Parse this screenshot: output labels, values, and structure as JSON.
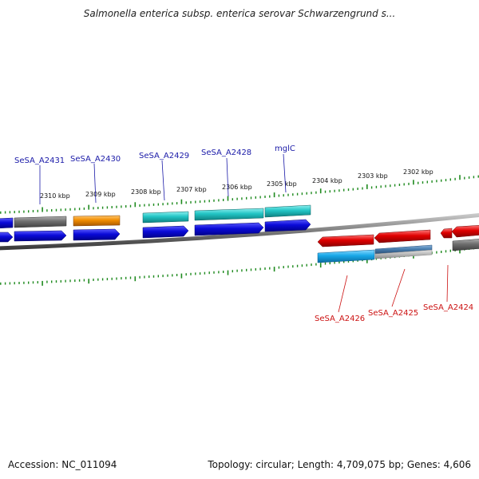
{
  "title": "Salmonella enterica subsp. enterica serovar Schwarzengrund s...",
  "accession": "Accession: NC_011094",
  "summary": "Topology: circular; Length: 4,709,075 bp; Genes: 4,606",
  "colors": {
    "backbone": "#7a7a7a",
    "tick": "#1e8a1e",
    "forward_cds": "#0a0ad8",
    "label_top": "#1a1aa8",
    "label_bottom": "#cc1111",
    "reverse_cds": "#e00000",
    "teal": "#22c4c4",
    "orange": "#f08c00",
    "gray": "#6e6e6e",
    "sky": "#18a8e8",
    "steel": "#4a7fb0"
  },
  "ticks": [
    {
      "label": "2310 kbp"
    },
    {
      "label": "2309 kbp"
    },
    {
      "label": "2308 kbp"
    },
    {
      "label": "2307 kbp"
    },
    {
      "label": "2306 kbp"
    },
    {
      "label": "2305 kbp"
    },
    {
      "label": "2304 kbp"
    },
    {
      "label": "2303 kbp"
    },
    {
      "label": "2302 kbp"
    }
  ],
  "genes_top": [
    {
      "label": "SeSA_A2431"
    },
    {
      "label": "SeSA_A2430"
    },
    {
      "label": "SeSA_A2429"
    },
    {
      "label": "SeSA_A2428"
    },
    {
      "label": "mglC"
    }
  ],
  "genes_bottom": [
    {
      "label": "SeSA_A2426"
    },
    {
      "label": "SeSA_A2425"
    },
    {
      "label": "SeSA_A2424"
    }
  ]
}
